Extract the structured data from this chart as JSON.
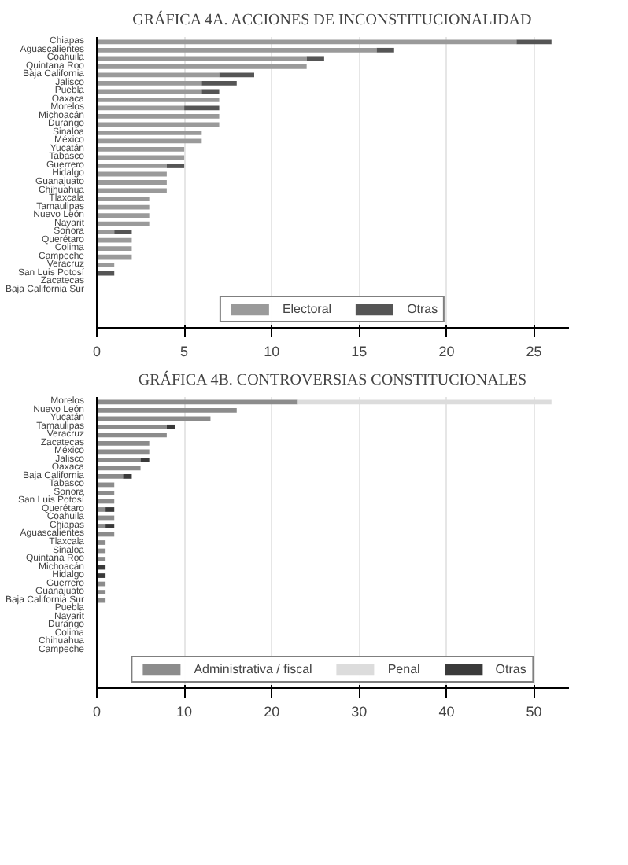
{
  "chart_data": [
    {
      "type": "bar",
      "orientation": "horizontal",
      "stacked": true,
      "title": "GRÁFICA 4A. ACCIONES DE INCONSTITUCIONALIDAD",
      "categories": [
        "Chiapas",
        "Aguascalientes",
        "Coahuila",
        "Quintana Roo",
        "Baja California",
        "Jalisco",
        "Puebla",
        "Oaxaca",
        "Morelos",
        "Michoacán",
        "Durango",
        "Sinaloa",
        "México",
        "Yucatán",
        "Tabasco",
        "Guerrero",
        "Hidalgo",
        "Guanajuato",
        "Chihuahua",
        "Tlaxcala",
        "Tamaulipas",
        "Nuevo León",
        "Nayarit",
        "Sonora",
        "Querétaro",
        "Colima",
        "Campeche",
        "Veracruz",
        "San Luis Potosí",
        "Zacatecas",
        "Baja California Sur"
      ],
      "series": [
        {
          "name": "Electoral",
          "color": "#9a9a9a",
          "values": [
            24,
            16,
            12,
            12,
            7,
            6,
            6,
            7,
            5,
            7,
            7,
            6,
            6,
            5,
            5,
            4,
            4,
            4,
            4,
            3,
            3,
            3,
            3,
            1,
            2,
            2,
            2,
            1,
            0,
            0,
            0
          ]
        },
        {
          "name": "Otras",
          "color": "#555555",
          "values": [
            2,
            1,
            1,
            0,
            2,
            2,
            1,
            0,
            2,
            0,
            0,
            0,
            0,
            0,
            0,
            1,
            0,
            0,
            0,
            0,
            0,
            0,
            0,
            1,
            0,
            0,
            0,
            0,
            1,
            0,
            0
          ]
        }
      ],
      "xlim": [
        0,
        27
      ],
      "xticks": [
        0,
        5,
        10,
        15,
        20,
        25
      ],
      "grid": "x",
      "legend": "bottom"
    },
    {
      "type": "bar",
      "orientation": "horizontal",
      "stacked": true,
      "title": "GRÁFICA 4B. CONTROVERSIAS CONSTITUCIONALES",
      "categories": [
        "Morelos",
        "Nuevo León",
        "Yucatán",
        "Tamaulipas",
        "Veracruz",
        "Zacatecas",
        "México",
        "Jalisco",
        "Oaxaca",
        "Baja California",
        "Tabasco",
        "Sonora",
        "San Luis Potosí",
        "Querétaro",
        "Coahuila",
        "Chiapas",
        "Aguascalientes",
        "Tlaxcala",
        "Sinaloa",
        "Quintana Roo",
        "Michoacán",
        "Hidalgo",
        "Guerrero",
        "Guanajuato",
        "Baja California Sur",
        "Puebla",
        "Nayarit",
        "Durango",
        "Colima",
        "Chihuahua",
        "Campeche"
      ],
      "series": [
        {
          "name": "Administrativa / fiscal",
          "color": "#8c8c8c",
          "values": [
            23,
            16,
            13,
            8,
            8,
            6,
            6,
            5,
            5,
            3,
            2,
            2,
            2,
            1,
            2,
            1,
            2,
            1,
            1,
            1,
            0,
            0,
            1,
            1,
            1,
            0,
            0,
            0,
            0,
            0,
            0
          ]
        },
        {
          "name": "Penal",
          "color": "#dcdcdc",
          "values": [
            29,
            0,
            0,
            0,
            0,
            0,
            0,
            0,
            0,
            0,
            0,
            0,
            0,
            0,
            0,
            0,
            0,
            0,
            0,
            0,
            0,
            0,
            0,
            0,
            0,
            0,
            0,
            0,
            0,
            0,
            0
          ]
        },
        {
          "name": "Otras",
          "color": "#3a3a3a",
          "values": [
            0,
            0,
            0,
            1,
            0,
            0,
            0,
            1,
            0,
            1,
            0,
            0,
            0,
            1,
            0,
            1,
            0,
            0,
            0,
            0,
            1,
            1,
            0,
            0,
            0,
            0,
            0,
            0,
            0,
            0,
            0
          ]
        }
      ],
      "xlim": [
        0,
        54
      ],
      "xticks": [
        0,
        10,
        20,
        30,
        40,
        50
      ],
      "grid": "x",
      "legend": "bottom"
    }
  ]
}
